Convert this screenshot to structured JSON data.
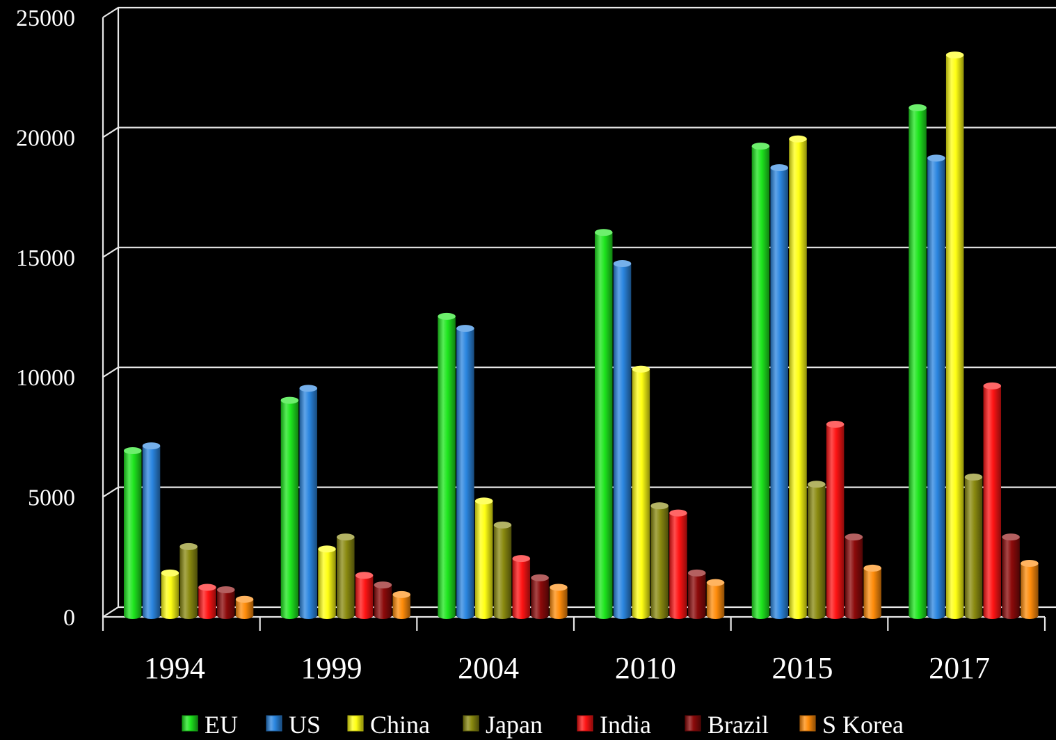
{
  "chart_data": {
    "type": "bar",
    "title": "",
    "xlabel": "",
    "ylabel": "",
    "ylim": [
      0,
      25000
    ],
    "yticks": [
      "0",
      "5000",
      "10000",
      "15000",
      "20000",
      "25000"
    ],
    "categories": [
      "1994",
      "1999",
      "2004",
      "2010",
      "2015",
      "2017"
    ],
    "grid": true,
    "legend": "bottom",
    "series": [
      {
        "name": "EU",
        "color": "#1ee61e",
        "values": [
          6700,
          8800,
          12300,
          15800,
          19400,
          21000
        ]
      },
      {
        "name": "US",
        "color": "#2b86e0",
        "values": [
          6900,
          9300,
          11800,
          14500,
          18500,
          18900
        ]
      },
      {
        "name": "China",
        "color": "#ffff14",
        "values": [
          1600,
          2600,
          4600,
          10100,
          19700,
          23200
        ]
      },
      {
        "name": "Japan",
        "color": "#8a8a10",
        "values": [
          2700,
          3100,
          3600,
          4400,
          5300,
          5600
        ]
      },
      {
        "name": "India",
        "color": "#ff1414",
        "values": [
          1000,
          1500,
          2200,
          4100,
          7800,
          9400
        ]
      },
      {
        "name": "Brazil",
        "color": "#8c0a0a",
        "values": [
          900,
          1100,
          1400,
          1600,
          3100,
          3100
        ]
      },
      {
        "name": "S Korea",
        "color": "#ff8c0a",
        "values": [
          500,
          700,
          1000,
          1200,
          1800,
          2000
        ]
      }
    ]
  }
}
